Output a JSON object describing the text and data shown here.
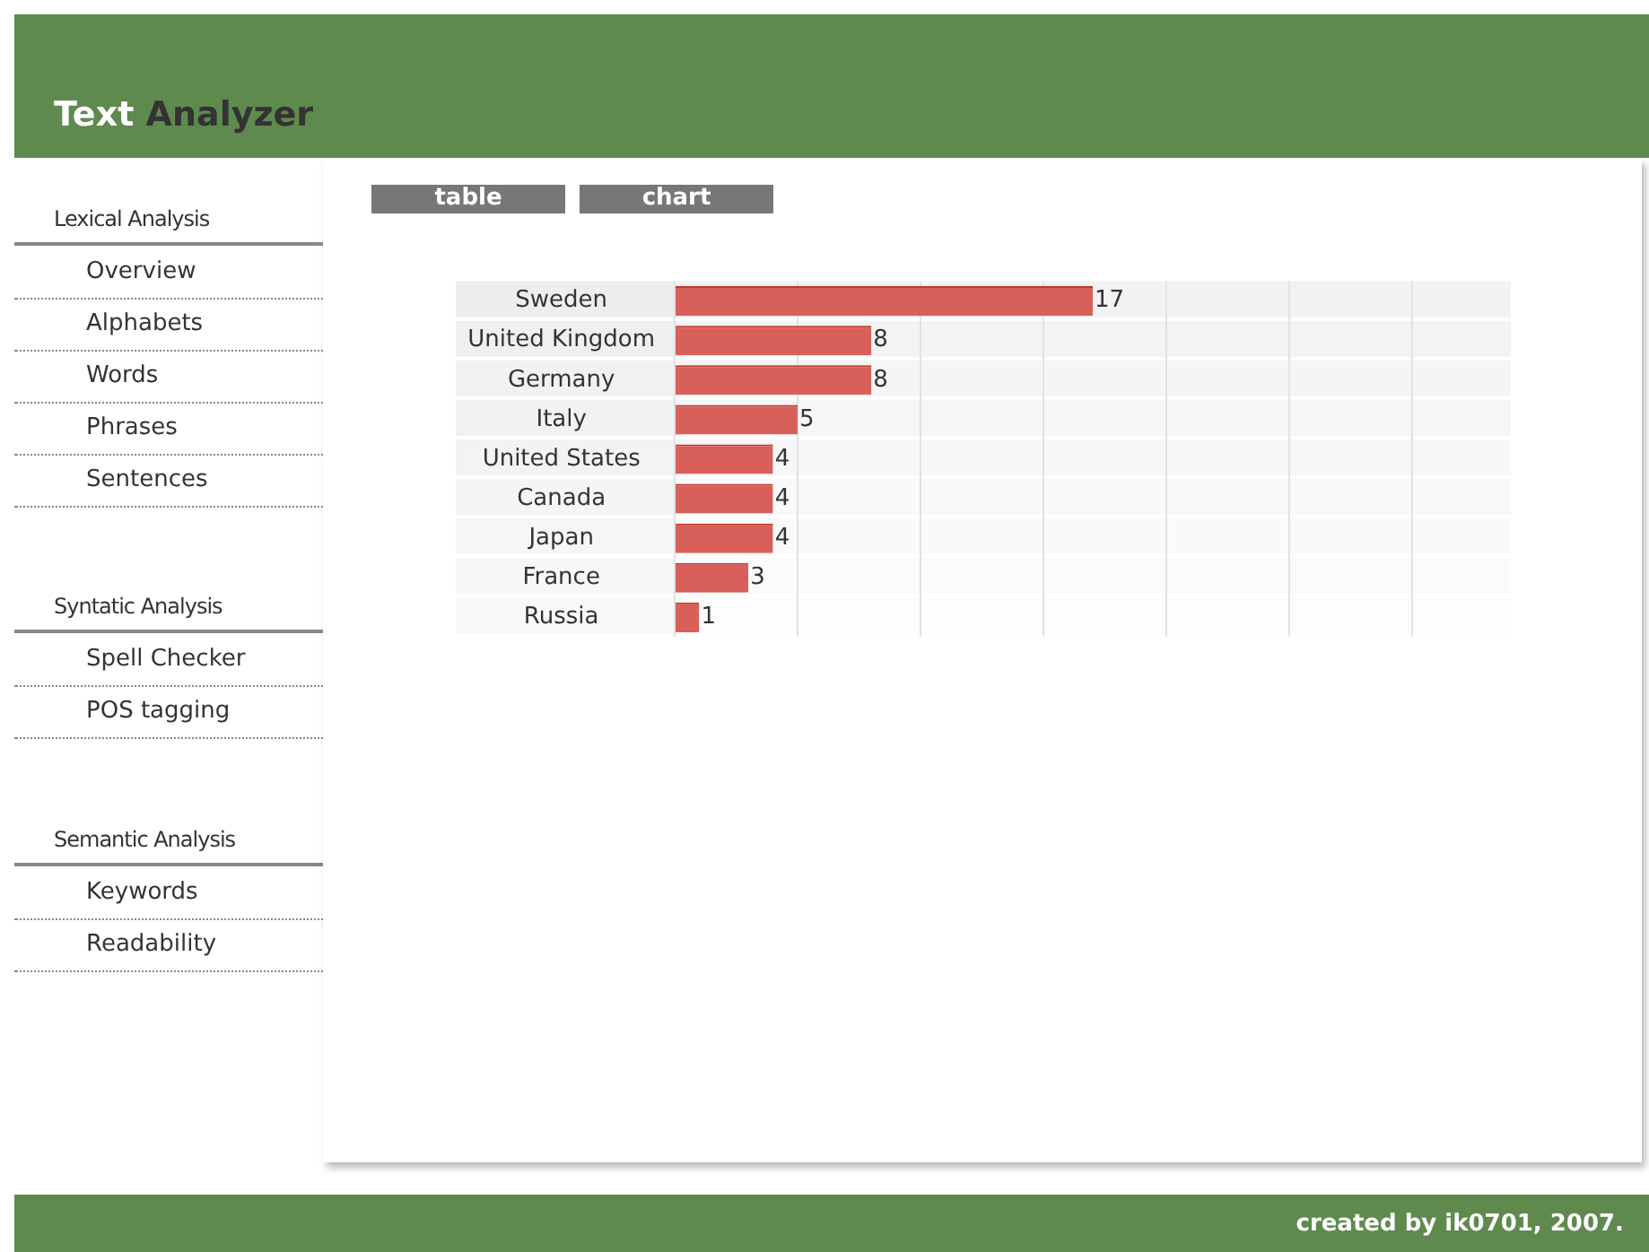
{
  "chart_data": {
    "type": "bar",
    "title": "Text Analyzer",
    "orientation": "horizontal",
    "categories": [
      "Sweden",
      "United Kingdom",
      "Germany",
      "Italy",
      "United States",
      "Canada",
      "Japan",
      "France",
      "Russia"
    ],
    "values": [
      17,
      8,
      8,
      5,
      4,
      4,
      4,
      3,
      1
    ],
    "color": "#d9605a",
    "xlim": [
      0,
      34
    ],
    "xticks": [
      {
        "value": 0,
        "label": null
      },
      {
        "value": 5,
        "label": null
      },
      {
        "value": 10,
        "label": null
      },
      {
        "value": 15,
        "label": null
      },
      {
        "value": 20,
        "label": null
      },
      {
        "value": 25,
        "label": null
      },
      {
        "value": 30,
        "label": null
      }
    ],
    "tick_labels": "y",
    "grid": "x",
    "data_labels": true,
    "legend": false,
    "annotations": [
      "table",
      "chart",
      "Lexical Analysis",
      "Overview",
      "Alphabets",
      "Words",
      "Phrases",
      "Sentences",
      "Syntatic Analysis",
      "Spell Checker",
      "POS tagging",
      "Semantic Analysis",
      "Keywords",
      "Readability",
      "created by ik0701, 2007."
    ]
  }
}
